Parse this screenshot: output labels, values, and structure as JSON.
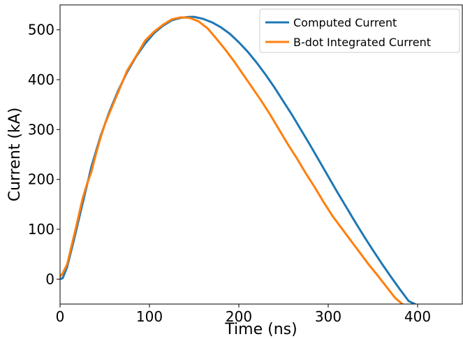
{
  "chart_data": {
    "type": "line",
    "xlabel": "Time (ns)",
    "ylabel": "Current (kA)",
    "xlim": [
      0,
      450
    ],
    "ylim": [
      -50,
      550
    ],
    "xticks": [
      0,
      100,
      200,
      300,
      400
    ],
    "yticks": [
      0,
      100,
      200,
      300,
      400,
      500
    ],
    "grid": false,
    "legend_position": "top-right",
    "series": [
      {
        "name": "Computed Current",
        "color": "#1f77b4",
        "x": [
          0,
          3,
          8,
          15,
          25,
          35,
          45,
          55,
          65,
          75,
          85,
          95,
          105,
          115,
          125,
          135,
          145,
          150,
          160,
          170,
          180,
          190,
          200,
          210,
          220,
          230,
          240,
          250,
          260,
          270,
          280,
          290,
          300,
          310,
          320,
          330,
          340,
          350,
          360,
          370,
          380,
          390,
          397
        ],
        "y": [
          0,
          2,
          25,
          75,
          150,
          225,
          285,
          335,
          378,
          415,
          446,
          472,
          493,
          508,
          519,
          524,
          526,
          526,
          522,
          515,
          505,
          492,
          475,
          456,
          434,
          410,
          384,
          356,
          328,
          298,
          268,
          237,
          206,
          175,
          145,
          115,
          86,
          58,
          31,
          5,
          -20,
          -44,
          -50
        ]
      },
      {
        "name": "B-dot Integrated Current",
        "color": "#ff7f0e",
        "x": [
          0,
          3,
          8,
          12,
          18,
          25,
          30,
          35,
          40,
          45,
          50,
          55,
          65,
          75,
          85,
          95,
          105,
          115,
          125,
          135,
          145,
          155,
          165,
          175,
          185,
          195,
          205,
          215,
          225,
          235,
          245,
          255,
          265,
          275,
          285,
          295,
          305,
          315,
          325,
          335,
          345,
          355,
          365,
          375,
          383
        ],
        "y": [
          5,
          12,
          30,
          60,
          105,
          160,
          190,
          215,
          250,
          282,
          310,
          332,
          375,
          418,
          447,
          478,
          496,
          510,
          521,
          525,
          524,
          517,
          503,
          482,
          460,
          436,
          410,
          384,
          358,
          330,
          300,
          270,
          242,
          212,
          184,
          154,
          126,
          102,
          78,
          54,
          30,
          8,
          -15,
          -38,
          -50
        ]
      }
    ]
  }
}
